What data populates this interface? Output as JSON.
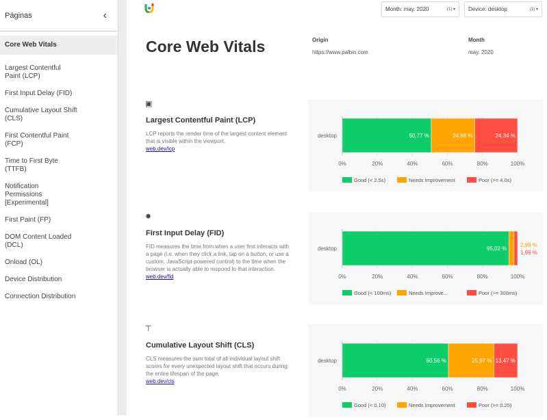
{
  "sidebar": {
    "title": "Páginas",
    "items": [
      "Core Web Vitals",
      "Largest Contentful Paint (LCP)",
      "First Input Delay (FID)",
      "Cumulative Layout Shift (CLS)",
      "First Contentful Paint (FCP)",
      "Time to First Byte (TTFB)",
      "Notification Permissions [Experimental]",
      "First Paint (FP)",
      "DOM Content Loaded (DCL)",
      "Onload (OL)",
      "Device Distribution",
      "Connection Distribution"
    ]
  },
  "filters": {
    "month_label": "Month:",
    "month_value": "may. 2020",
    "month_count": "(1)",
    "device_label": "Device:",
    "device_value": "desktop",
    "device_count": "(1)"
  },
  "header": {
    "title": "Core Web Vitals",
    "origin_label": "Origin",
    "origin_value": "https://www.palbin.com",
    "month_label": "Month",
    "month_value": "may. 2020"
  },
  "colors": {
    "good": "#0ccd6a",
    "needs": "#ffa400",
    "poor": "#ff4e42"
  },
  "sections": [
    {
      "icon": "image-icon",
      "title": "Largest Contentful Paint (LCP)",
      "desc": "LCP reports the render time of the largest content element that is visible within the viewport.",
      "link": "web.dev/lcp"
    },
    {
      "icon": "click-icon",
      "title": "First Input Delay (FID)",
      "desc": "FID measures the time from when a user first interacts with a page (i.e. when they click a link, tap on a button, or use a custom, JavaScript-powered control) to the time when the browser is actually able to respond to that interaction.",
      "link": "web.dev/fid"
    },
    {
      "icon": "layout-shift-icon",
      "title": "Cumulative Layout Shift (CLS)",
      "desc": "CLS measures the sum total of all individual layout shift scores for every unexpected layout shift that occurs during the entire lifespan of the page.",
      "link": "web.dev/cls"
    }
  ],
  "chart_data": [
    {
      "type": "bar",
      "orientation": "horizontal",
      "stacked": true,
      "categories": [
        "desktop"
      ],
      "xlim": [
        0,
        100
      ],
      "ticks": [
        "0%",
        "20%",
        "40%",
        "60%",
        "80%",
        "100%"
      ],
      "legend": "bottom",
      "series": [
        {
          "name": "Good (< 2.5s)",
          "values": [
            50.77
          ],
          "label": "50,77 %"
        },
        {
          "name": "Needs Improvement",
          "values": [
            24.88
          ],
          "label": "24,88 %"
        },
        {
          "name": "Poor (>= 4.0s)",
          "values": [
            24.34
          ],
          "label": "24,34 %"
        }
      ]
    },
    {
      "type": "bar",
      "orientation": "horizontal",
      "stacked": true,
      "categories": [
        "desktop"
      ],
      "xlim": [
        0,
        100
      ],
      "ticks": [
        "0%",
        "20%",
        "40%",
        "60%",
        "80%",
        "100%"
      ],
      "legend": "bottom",
      "series": [
        {
          "name": "Good (< 100ms)",
          "values": [
            95.02
          ],
          "label": "95,02 %"
        },
        {
          "name": "Needs Improve...",
          "values": [
            2.99
          ],
          "label": "2,99 %"
        },
        {
          "name": "Poor (>= 300ms)",
          "values": [
            1.99
          ],
          "label": "1,99 %"
        }
      ]
    },
    {
      "type": "bar",
      "orientation": "horizontal",
      "stacked": true,
      "categories": [
        "desktop"
      ],
      "xlim": [
        0,
        100
      ],
      "ticks": [
        "0%",
        "20%",
        "40%",
        "60%",
        "80%",
        "100%"
      ],
      "legend": "bottom",
      "series": [
        {
          "name": "Good (< 0.10)",
          "values": [
            60.56
          ],
          "label": "60,56 %"
        },
        {
          "name": "Needs Improvement",
          "values": [
            25.97
          ],
          "label": "25,97 %"
        },
        {
          "name": "Poor (>= 0.25)",
          "values": [
            13.47
          ],
          "label": "13,47 %"
        }
      ]
    }
  ]
}
